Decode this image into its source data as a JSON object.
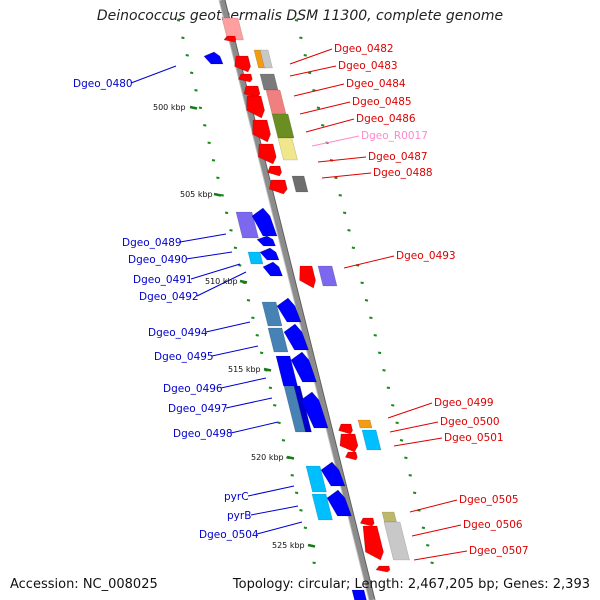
{
  "title": "Deinococcus geothermalis DSM 11300, complete genome",
  "accession": "Accession: NC_008025",
  "summary": "Topology: circular; Length: 2,467,205 bp; Genes: 2,393",
  "colors": {
    "backbone": "#8c8c8c",
    "forward_gene": "#0000ff",
    "reverse_gene": "#ff0000",
    "rna": "#ff88cc",
    "left_label": "#0000cc",
    "right_label": "#dd0000"
  },
  "tick_labels": [
    "500 kbp",
    "505 kbp",
    "510 kbp",
    "515 kbp",
    "520 kbp",
    "525 kbp"
  ],
  "left_labels": [
    "Dgeo_0480",
    "Dgeo_0489",
    "Dgeo_0490",
    "Dgeo_0491",
    "Dgeo_0492",
    "Dgeo_0494",
    "Dgeo_0495",
    "Dgeo_0496",
    "Dgeo_0497",
    "Dgeo_0498",
    "pyrC",
    "pyrB",
    "Dgeo_0504"
  ],
  "right_labels": [
    "Dgeo_0482",
    "Dgeo_0483",
    "Dgeo_0484",
    "Dgeo_0485",
    "Dgeo_0486",
    "Dgeo_R0017",
    "Dgeo_0487",
    "Dgeo_0488",
    "Dgeo_0493",
    "Dgeo_0499",
    "Dgeo_0500",
    "Dgeo_0501",
    "Dgeo_0505",
    "Dgeo_0506",
    "Dgeo_0507"
  ]
}
